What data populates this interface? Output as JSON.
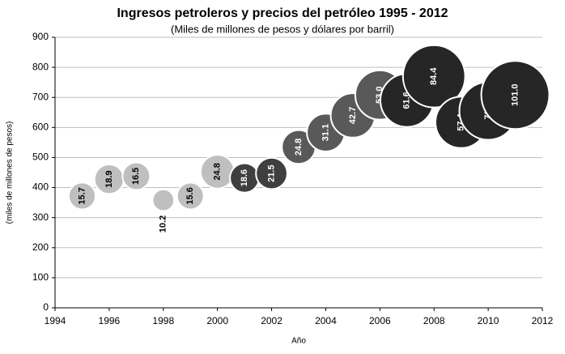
{
  "chart_data": {
    "type": "bubble",
    "title": "Ingresos petroleros y precios del petróleo 1995 - 2012",
    "subtitle": "(Miles de millones de pesos y dólares por barril)",
    "x_label": "Año",
    "y_label": "(miles de millones de pesos)",
    "x": [
      1995,
      1996,
      1997,
      1998,
      1999,
      2000,
      2001,
      2002,
      2003,
      2004,
      2005,
      2006,
      2007,
      2008,
      2009,
      2010,
      2011
    ],
    "values": [
      372,
      428,
      438,
      358,
      372,
      453,
      432,
      447,
      535,
      583,
      640,
      708,
      690,
      770,
      617,
      655,
      708
    ],
    "sizes": [
      15.7,
      18.9,
      16.5,
      10.2,
      15.6,
      24.8,
      18.6,
      21.5,
      24.8,
      31.1,
      42.7,
      53.0,
      61.6,
      84.4,
      57.4,
      72.5,
      101.0
    ],
    "size_labels": [
      "15.7",
      "18.9",
      "16.5",
      "10.2",
      "15.6",
      "24.8",
      "18.6",
      "21.5",
      "24.8",
      "31.1",
      "42.7",
      "53.0",
      "61.6",
      "84.4",
      "57.4",
      "72.5",
      "101.0"
    ],
    "colors": [
      "#bfbfbf",
      "#bfbfbf",
      "#bfbfbf",
      "#bfbfbf",
      "#bfbfbf",
      "#bfbfbf",
      "#3f3f3f",
      "#3f3f3f",
      "#595959",
      "#595959",
      "#595959",
      "#595959",
      "#262626",
      "#262626",
      "#262626",
      "#262626",
      "#262626"
    ],
    "xlim": [
      1994,
      2012
    ],
    "xticks": [
      1994,
      1996,
      1998,
      2000,
      2002,
      2004,
      2006,
      2008,
      2010,
      2012
    ],
    "ylim": [
      0,
      900
    ],
    "yticks": [
      0,
      100,
      200,
      300,
      400,
      500,
      600,
      700,
      800,
      900
    ],
    "grid": true
  }
}
